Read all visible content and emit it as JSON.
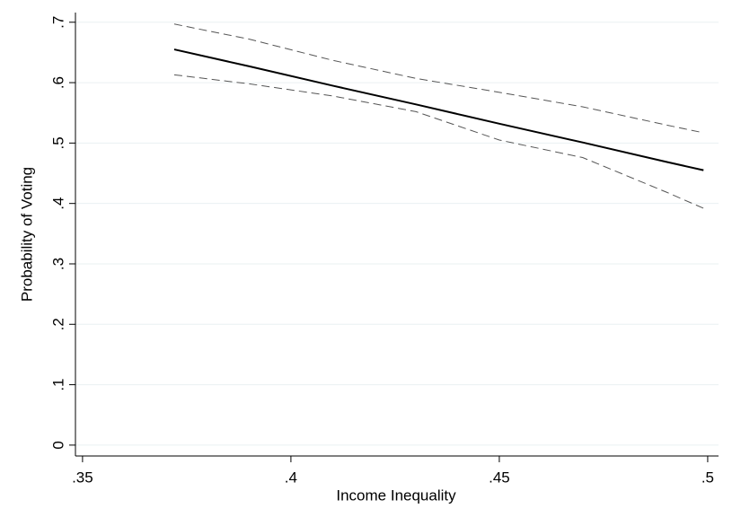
{
  "chart_data": {
    "type": "line",
    "x_label": "Income Inequality",
    "y_label": "Probability of Voting",
    "x": [
      0.372,
      0.39,
      0.41,
      0.43,
      0.45,
      0.47,
      0.49,
      0.499
    ],
    "series": [
      {
        "color": "#000000",
        "style": "solid",
        "values": [
          0.655,
          0.627,
          0.595,
          0.564,
          0.532,
          0.501,
          0.469,
          0.455
        ]
      },
      {
        "color": "#555555",
        "style": "dashed",
        "values": [
          0.697,
          0.672,
          0.637,
          0.607,
          0.584,
          0.56,
          0.53,
          0.517
        ]
      },
      {
        "color": "#555555",
        "style": "dashed",
        "values": [
          0.613,
          0.598,
          0.578,
          0.552,
          0.505,
          0.476,
          0.419,
          0.392
        ]
      }
    ],
    "xlim": [
      0.3483,
      0.5026
    ],
    "ylim": [
      -0.018,
      0.716
    ],
    "xticks": [
      {
        "value": 0.35,
        "label": ".35"
      },
      {
        "value": 0.4,
        "label": ".4"
      },
      {
        "value": 0.45,
        "label": ".45"
      },
      {
        "value": 0.5,
        "label": ".5"
      }
    ],
    "yticks": [
      0,
      {
        "value": 0.1,
        "label": ".1"
      },
      {
        "value": 0.2,
        "label": ".2"
      },
      {
        "value": 0.3,
        "label": ".3"
      },
      {
        "value": 0.4,
        "label": ".4"
      },
      {
        "value": 0.5,
        "label": ".5"
      },
      {
        "value": 0.6,
        "label": ".6"
      },
      {
        "value": 0.7,
        "label": ".7"
      }
    ],
    "grid": true
  }
}
